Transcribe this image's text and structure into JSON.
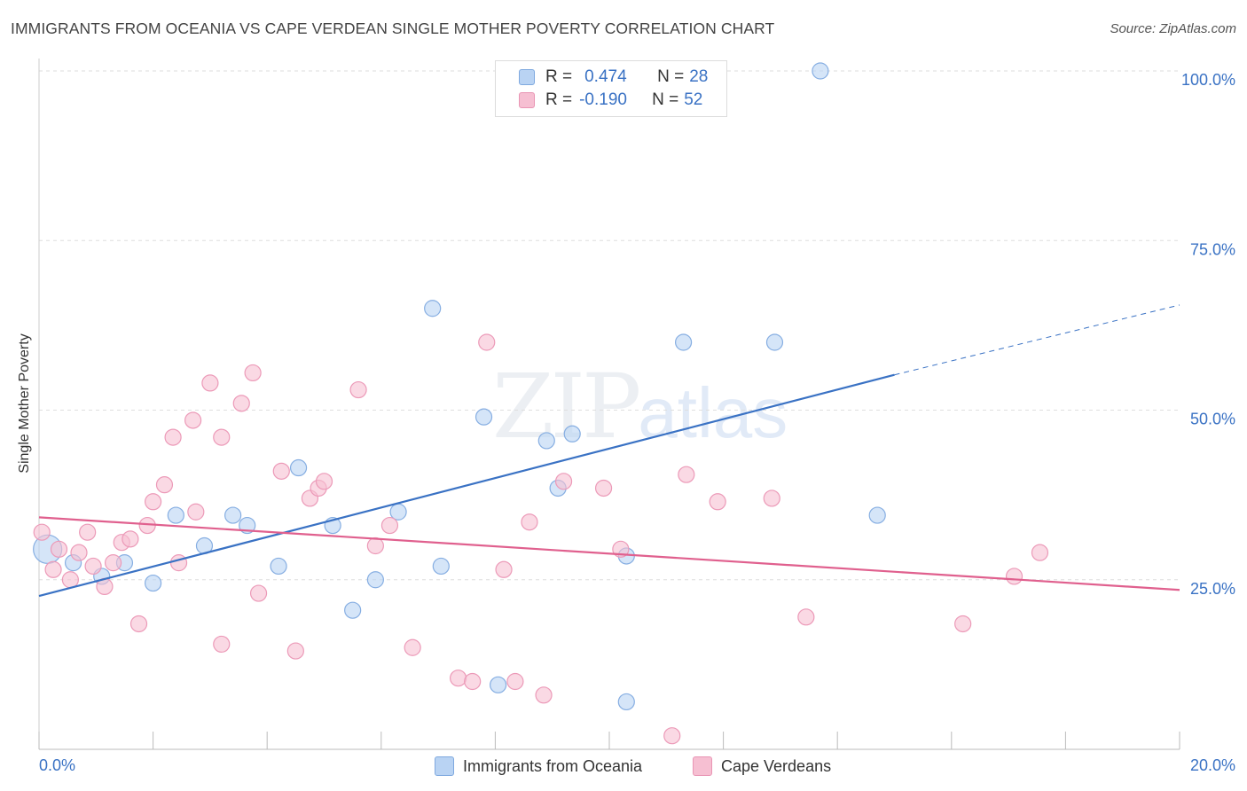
{
  "title": "IMMIGRANTS FROM OCEANIA VS CAPE VERDEAN SINGLE MOTHER POVERTY CORRELATION CHART",
  "source": "Source: ZipAtlas.com",
  "watermark": {
    "zip": "ZIP",
    "atlas": "atlas"
  },
  "colors": {
    "blue": "#3a72c4",
    "blue_fill": "#b9d3f3",
    "pink": "#e0608e",
    "pink_fill": "#f6bfd2",
    "grid": "#dedede",
    "tick_label": "#3a72c4"
  },
  "legend_top": {
    "rows": [
      {
        "r_label": "R =",
        "r_value": "0.474",
        "n_label": "N =",
        "n_value": "28"
      },
      {
        "r_label": "R =",
        "r_value": "-0.190",
        "n_label": "N =",
        "n_value": "52"
      }
    ]
  },
  "legend_bottom": [
    "Immigrants from Oceania",
    "Cape Verdeans"
  ],
  "chart_data": {
    "type": "scatter",
    "title": "IMMIGRANTS FROM OCEANIA VS CAPE VERDEAN SINGLE MOTHER POVERTY CORRELATION CHART",
    "xlabel": "",
    "ylabel": "Single Mother Poverty",
    "xlim": [
      0,
      20
    ],
    "ylim": [
      0,
      102
    ],
    "x_tick_labels": [
      "0.0%",
      "20.0%"
    ],
    "y_ticks": [
      25,
      50,
      75,
      100
    ],
    "y_tick_labels": [
      "25.0%",
      "50.0%",
      "75.0%",
      "100.0%"
    ],
    "grid": "horizontal dashed",
    "legend_placement": "top-center",
    "series": [
      {
        "name": "Immigrants from Oceania",
        "trend": {
          "x": [
            0,
            15
          ],
          "y": [
            22.6,
            55.2
          ],
          "dashed_to": [
            20,
            65.5
          ]
        },
        "points": [
          [
            0.15,
            29.5,
            16
          ],
          [
            0.6,
            27.5,
            9
          ],
          [
            1.1,
            25.5,
            9
          ],
          [
            1.5,
            27.5,
            9
          ],
          [
            2.0,
            24.5,
            9
          ],
          [
            2.4,
            34.5,
            9
          ],
          [
            2.9,
            30.0,
            9
          ],
          [
            3.4,
            34.5,
            9
          ],
          [
            3.65,
            33.0,
            9
          ],
          [
            4.2,
            27.0,
            9
          ],
          [
            4.55,
            41.5,
            9
          ],
          [
            5.15,
            33.0,
            9
          ],
          [
            5.5,
            20.5,
            9
          ],
          [
            5.9,
            25.0,
            9
          ],
          [
            6.3,
            35.0,
            9
          ],
          [
            6.9,
            65.0,
            9
          ],
          [
            7.05,
            27.0,
            9
          ],
          [
            7.8,
            49.0,
            9
          ],
          [
            8.05,
            9.5,
            9
          ],
          [
            8.9,
            45.5,
            9
          ],
          [
            9.1,
            38.5,
            9
          ],
          [
            9.35,
            46.5,
            9
          ],
          [
            10.3,
            28.5,
            9
          ],
          [
            10.3,
            7.0,
            9
          ],
          [
            11.3,
            60.0,
            9
          ],
          [
            12.9,
            60.0,
            9
          ],
          [
            13.7,
            100.0,
            9
          ],
          [
            14.7,
            34.5,
            9
          ]
        ]
      },
      {
        "name": "Cape Verdeans",
        "trend": {
          "x": [
            0,
            20
          ],
          "y": [
            34.2,
            23.5
          ]
        },
        "points": [
          [
            0.05,
            32.0,
            9
          ],
          [
            0.25,
            26.5,
            9
          ],
          [
            0.35,
            29.5,
            9
          ],
          [
            0.55,
            25.0,
            9
          ],
          [
            0.7,
            29.0,
            9
          ],
          [
            0.85,
            32.0,
            9
          ],
          [
            0.95,
            27.0,
            9
          ],
          [
            1.15,
            24.0,
            9
          ],
          [
            1.3,
            27.5,
            9
          ],
          [
            1.45,
            30.5,
            9
          ],
          [
            1.6,
            31.0,
            9
          ],
          [
            1.75,
            18.5,
            9
          ],
          [
            1.9,
            33.0,
            9
          ],
          [
            2.0,
            36.5,
            9
          ],
          [
            2.2,
            39.0,
            9
          ],
          [
            2.35,
            46.0,
            9
          ],
          [
            2.45,
            27.5,
            9
          ],
          [
            2.7,
            48.5,
            9
          ],
          [
            2.75,
            35.0,
            9
          ],
          [
            3.0,
            54.0,
            9
          ],
          [
            3.2,
            46.0,
            9
          ],
          [
            3.2,
            15.5,
            9
          ],
          [
            3.55,
            51.0,
            9
          ],
          [
            3.75,
            55.5,
            9
          ],
          [
            3.85,
            23.0,
            9
          ],
          [
            4.25,
            41.0,
            9
          ],
          [
            4.5,
            14.5,
            9
          ],
          [
            4.75,
            37.0,
            9
          ],
          [
            4.9,
            38.5,
            9
          ],
          [
            5.0,
            39.5,
            9
          ],
          [
            5.6,
            53.0,
            9
          ],
          [
            5.9,
            30.0,
            9
          ],
          [
            6.15,
            33.0,
            9
          ],
          [
            6.55,
            15.0,
            9
          ],
          [
            7.35,
            10.5,
            9
          ],
          [
            7.6,
            10.0,
            9
          ],
          [
            7.85,
            60.0,
            9
          ],
          [
            8.15,
            26.5,
            9
          ],
          [
            8.35,
            10.0,
            9
          ],
          [
            8.6,
            33.5,
            9
          ],
          [
            8.85,
            8.0,
            9
          ],
          [
            9.2,
            39.5,
            9
          ],
          [
            9.9,
            38.5,
            9
          ],
          [
            10.2,
            29.5,
            9
          ],
          [
            11.1,
            2.0,
            9
          ],
          [
            11.35,
            40.5,
            9
          ],
          [
            11.9,
            36.5,
            9
          ],
          [
            12.85,
            37.0,
            9
          ],
          [
            13.45,
            19.5,
            9
          ],
          [
            16.2,
            18.5,
            9
          ],
          [
            17.1,
            25.5,
            9
          ],
          [
            17.55,
            29.0,
            9
          ]
        ]
      }
    ]
  }
}
